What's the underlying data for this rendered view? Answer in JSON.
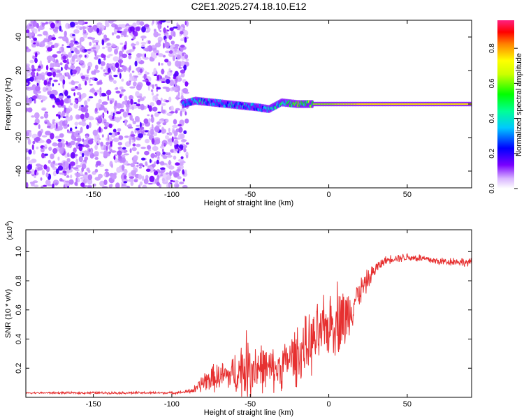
{
  "title": "C2E1.2025.274.18.10.E12",
  "chart_data": [
    {
      "type": "heatmap",
      "xlabel": "Height of straight line (km)",
      "ylabel": "Frequency (Hz)",
      "xlim": [
        -193,
        91
      ],
      "ylim": [
        -50,
        50
      ],
      "xticks": [
        -150,
        -100,
        -50,
        0,
        50
      ],
      "yticks": [
        -40,
        -20,
        0,
        20,
        40
      ],
      "noise_region_x": [
        -193,
        -90
      ],
      "signal_band": {
        "x": [
          -93,
          -85,
          -75,
          -65,
          -55,
          -45,
          -38,
          -30,
          -20,
          -10,
          0,
          10,
          20,
          30,
          40,
          50,
          60,
          70,
          80,
          90
        ],
        "center": [
          0,
          2,
          1,
          0,
          -1,
          -2,
          -3,
          1,
          0,
          0,
          0,
          0,
          0,
          0,
          0,
          0,
          0,
          0,
          0,
          0
        ],
        "amplitude": [
          0.35,
          0.45,
          0.4,
          0.4,
          0.4,
          0.35,
          0.4,
          0.5,
          0.6,
          0.65,
          0.65,
          0.7,
          0.75,
          0.75,
          0.75,
          0.75,
          0.75,
          0.75,
          0.75,
          0.75
        ]
      },
      "colorbar": {
        "label": "Normalized spectral amplitude",
        "range": [
          0,
          0.96
        ],
        "ticks": [
          0.0,
          0.2,
          0.4,
          0.6,
          0.8
        ]
      }
    },
    {
      "type": "line",
      "xlabel": "Height of straight line (km)",
      "ylabel": "SNR (10 * v/v)",
      "multiplier": "(x10",
      "multiplier_exp": "4",
      "xlim": [
        -193,
        91
      ],
      "ylim": [
        0,
        1.15
      ],
      "xticks": [
        -150,
        -100,
        -50,
        0,
        50
      ],
      "yticks": [
        0.2,
        0.4,
        0.6,
        0.8,
        1.0
      ],
      "color": "#e63030",
      "x": [
        -193,
        -150,
        -100,
        -92,
        -85,
        -80,
        -75,
        -70,
        -65,
        -60,
        -55,
        -50,
        -45,
        -40,
        -35,
        -30,
        -25,
        -20,
        -15,
        -10,
        -5,
        0,
        5,
        8,
        10,
        15,
        20,
        25,
        30,
        35,
        40,
        50,
        60,
        70,
        80,
        91
      ],
      "y": [
        0.03,
        0.03,
        0.03,
        0.035,
        0.05,
        0.1,
        0.12,
        0.13,
        0.14,
        0.15,
        0.18,
        0.2,
        0.2,
        0.18,
        0.17,
        0.2,
        0.25,
        0.28,
        0.32,
        0.36,
        0.42,
        0.48,
        0.52,
        0.55,
        0.5,
        0.62,
        0.72,
        0.8,
        0.88,
        0.93,
        0.95,
        0.96,
        0.95,
        0.93,
        0.93,
        0.92
      ],
      "noise": [
        0.005,
        0.008,
        0.008,
        0.01,
        0.03,
        0.07,
        0.09,
        0.1,
        0.11,
        0.14,
        0.22,
        0.25,
        0.18,
        0.16,
        0.15,
        0.16,
        0.16,
        0.22,
        0.2,
        0.22,
        0.22,
        0.22,
        0.25,
        0.3,
        0.22,
        0.15,
        0.1,
        0.07,
        0.05,
        0.03,
        0.03,
        0.03,
        0.03,
        0.03,
        0.03,
        0.03
      ]
    }
  ]
}
